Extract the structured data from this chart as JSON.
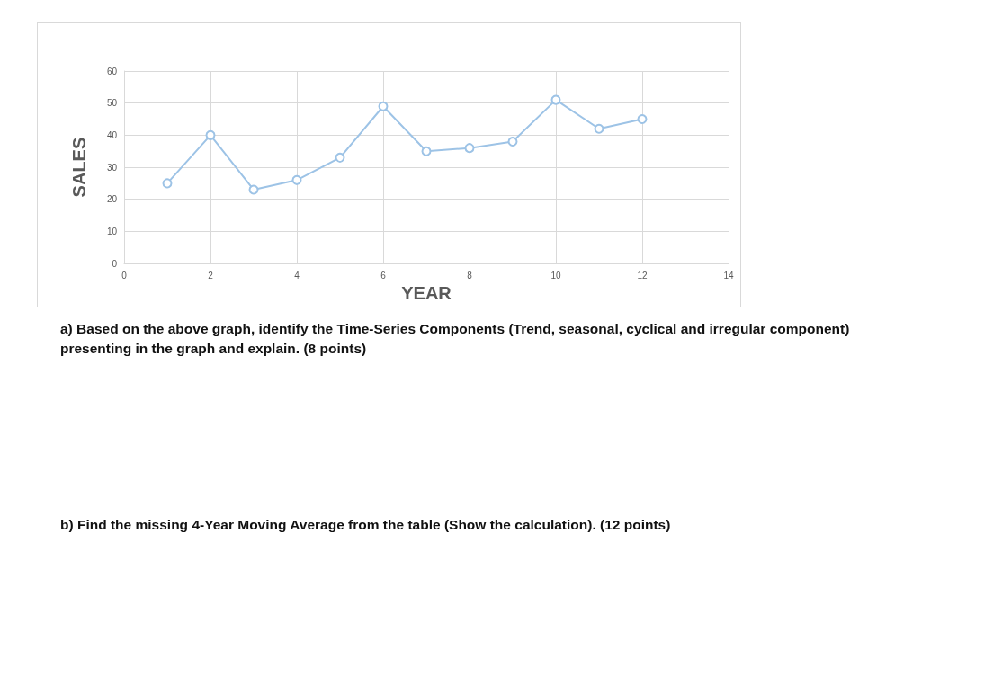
{
  "chart_data": {
    "type": "line",
    "xlabel": "YEAR",
    "ylabel": "SALES",
    "x": [
      1,
      2,
      3,
      4,
      5,
      6,
      7,
      8,
      9,
      10,
      11,
      12
    ],
    "series": [
      {
        "color": "#9dc3e6",
        "values": [
          25,
          40,
          23,
          26,
          33,
          49,
          35,
          36,
          38,
          51,
          42,
          45
        ]
      }
    ],
    "xlim": [
      0,
      14
    ],
    "xticks": [
      0,
      2,
      4,
      6,
      8,
      10,
      12,
      14
    ],
    "ylim": [
      0,
      60
    ],
    "yticks": [
      0,
      10,
      20,
      30,
      40,
      50,
      60
    ],
    "grid": true,
    "marker": "circle",
    "line_style": "solid",
    "annotations": [
      "a) Based on the above graph, identify the Time-Series Components (Trend, seasonal, cyclical and irregular component) presenting in the graph and explain. (8 points)",
      "b) Find the missing 4-Year Moving Average from the table (Show the calculation). (12 points)"
    ]
  }
}
